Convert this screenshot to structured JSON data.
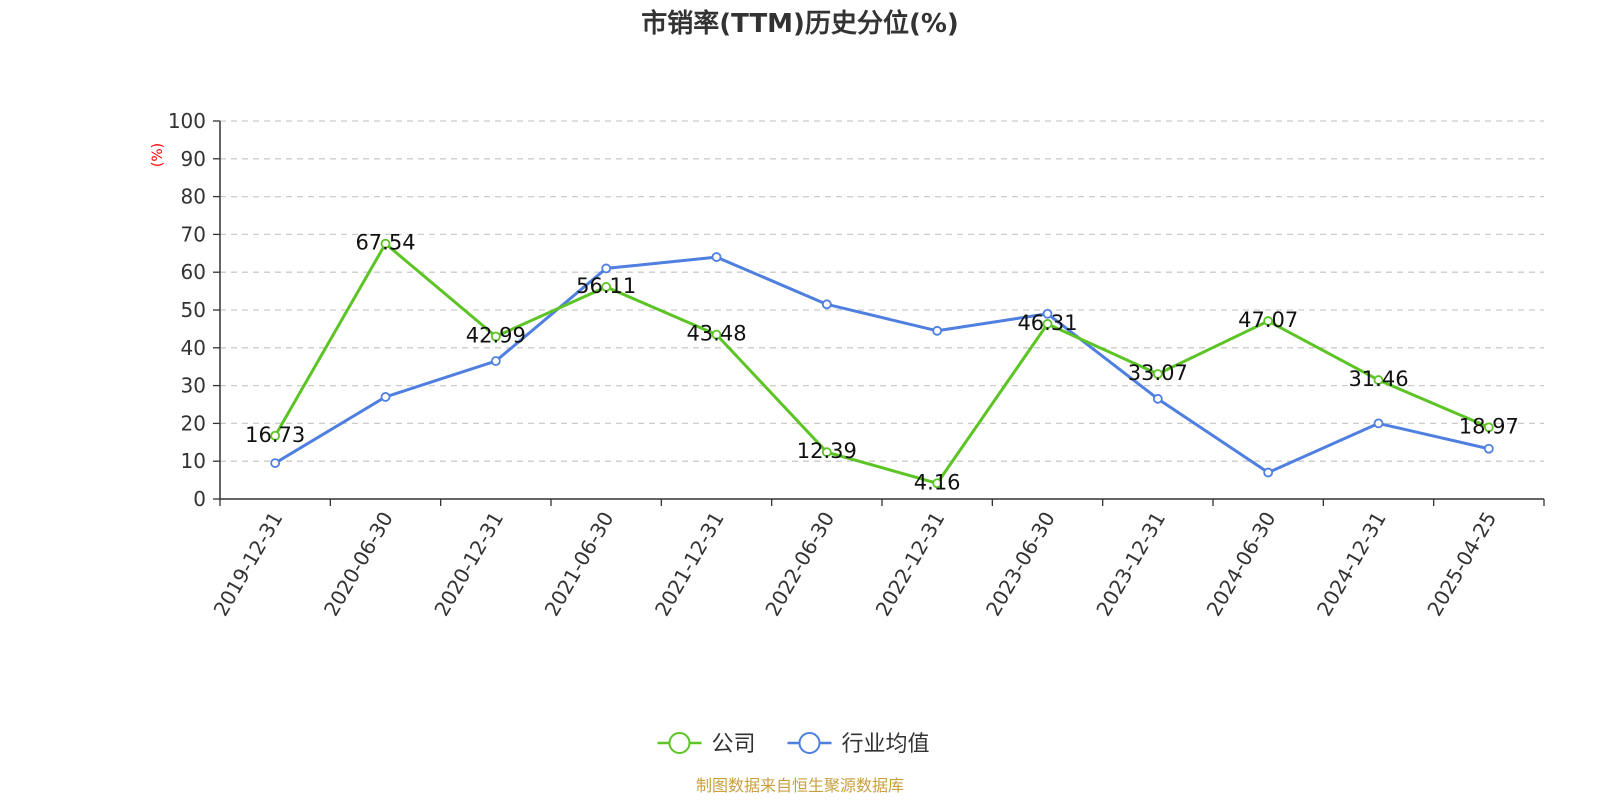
{
  "chart_data": {
    "type": "line",
    "title": "市销率(TTM)历史分位(%)",
    "ylabel": "(%)",
    "ylim": [
      0,
      100
    ],
    "yticks": [
      0,
      10,
      20,
      30,
      40,
      50,
      60,
      70,
      80,
      90,
      100
    ],
    "grid": true,
    "legend_position": "bottom-center",
    "categories": [
      "2019-12-31",
      "2020-06-30",
      "2020-12-31",
      "2021-06-30",
      "2021-12-31",
      "2022-06-30",
      "2022-12-31",
      "2023-06-30",
      "2023-12-31",
      "2024-06-30",
      "2024-12-31",
      "2025-04-25"
    ],
    "series": [
      {
        "name": "公司",
        "color": "#5cc425",
        "show_labels": true,
        "values": [
          16.73,
          67.54,
          42.99,
          56.11,
          43.48,
          12.39,
          4.16,
          46.31,
          33.07,
          47.07,
          31.46,
          18.97
        ]
      },
      {
        "name": "行业均值",
        "color": "#4f7fe0",
        "show_labels": false,
        "values": [
          9.5,
          27.0,
          36.5,
          61.0,
          64.0,
          51.5,
          44.5,
          49.0,
          26.5,
          7.0,
          20.0,
          13.3
        ]
      }
    ],
    "ylabel_color": "#ff0000"
  },
  "source": {
    "text": "制图数据来自恒生聚源数据库",
    "color": "#c8a040"
  }
}
